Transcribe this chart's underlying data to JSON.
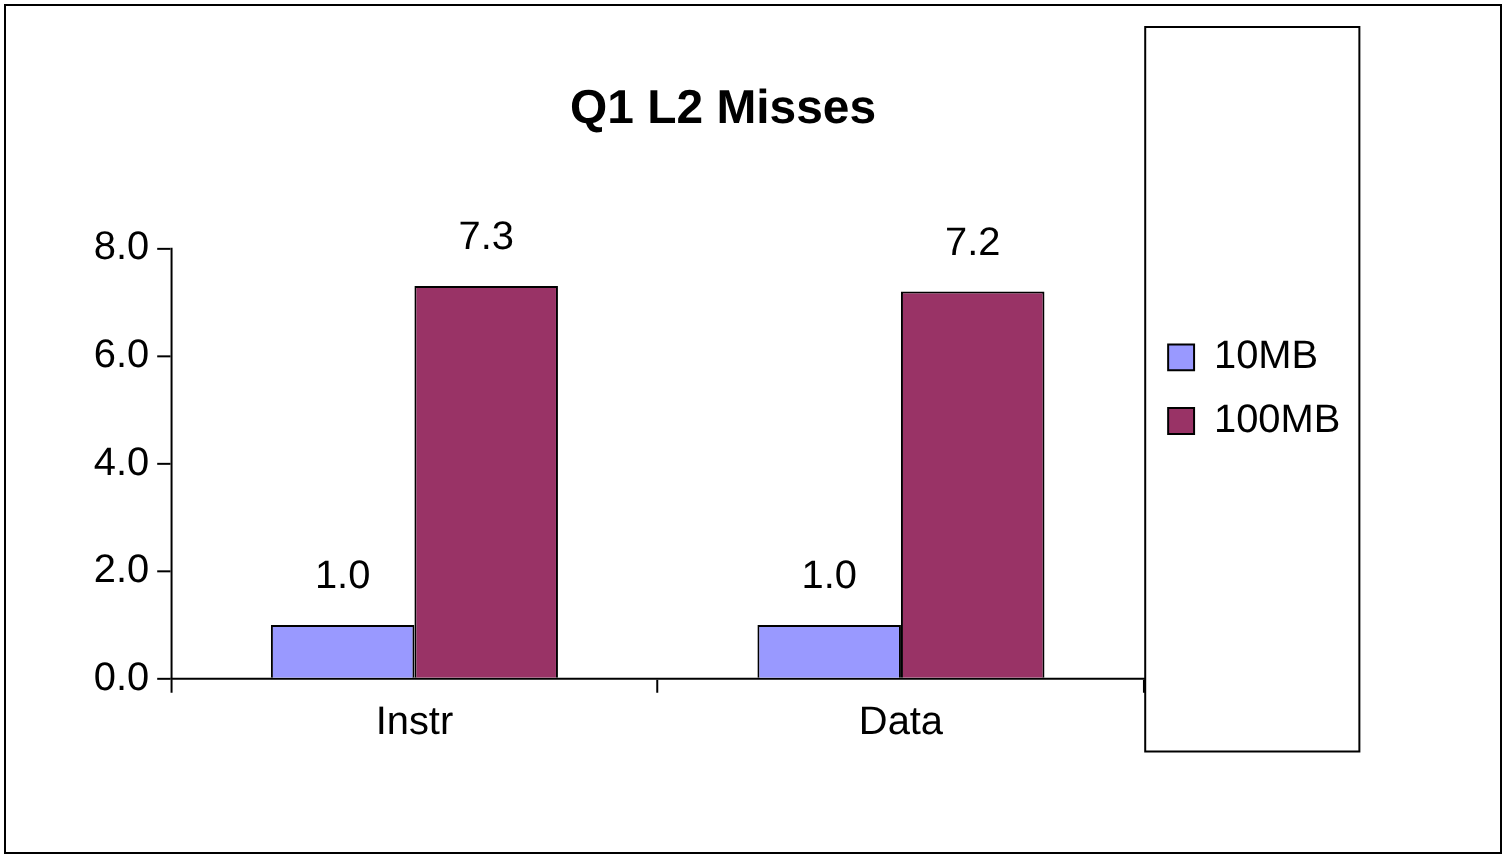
{
  "chart_data": {
    "type": "bar",
    "title": "Q1 L2 Misses",
    "categories": [
      "Instr",
      "Data"
    ],
    "series": [
      {
        "name": "10MB",
        "color": "#9999ff",
        "values": [
          1.0,
          1.0
        ],
        "value_labels": [
          "1.0",
          "1.0"
        ]
      },
      {
        "name": "100MB",
        "color": "#993366",
        "values": [
          7.3,
          7.2
        ],
        "value_labels": [
          "7.3",
          "7.2"
        ]
      }
    ],
    "ylim": [
      0,
      8
    ],
    "yticks": [
      {
        "value": 0,
        "label": "0.0"
      },
      {
        "value": 2,
        "label": "2.0"
      },
      {
        "value": 4,
        "label": "4.0"
      },
      {
        "value": 6,
        "label": "6.0"
      },
      {
        "value": 8,
        "label": "8.0"
      }
    ],
    "grid": false,
    "legend": "right"
  }
}
